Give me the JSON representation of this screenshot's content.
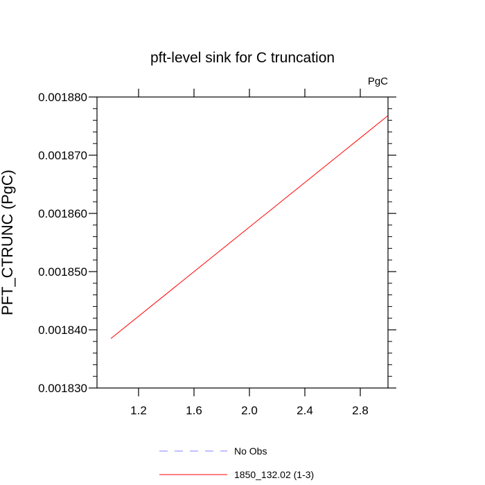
{
  "chart_data": {
    "type": "line",
    "title": "pft-level sink for C truncation",
    "units_label": "PgC",
    "ylabel": "PFT_CTRUNC  (PgC)",
    "xlabel": "",
    "xlim": [
      0.9,
      3.0
    ],
    "ylim": [
      0.00183,
      0.00188
    ],
    "x_ticks": [
      1.2,
      1.6,
      2.0,
      2.4,
      2.8
    ],
    "x_tick_labels": [
      "1.2",
      "1.6",
      "2.0",
      "2.4",
      "2.8"
    ],
    "y_ticks": [
      0.00183,
      0.00184,
      0.00185,
      0.00186,
      0.00187,
      0.00188
    ],
    "y_tick_labels": [
      "0.001830",
      "0.001840",
      "0.001850",
      "0.001860",
      "0.001870",
      "0.001880"
    ],
    "grid": false,
    "series": [
      {
        "name": "1850_132.02 (1-3)",
        "color": "#ff0000",
        "style": "solid",
        "x": [
          1.0,
          3.0
        ],
        "y": [
          0.0018385,
          0.0018768
        ]
      }
    ],
    "legend": {
      "placement": "bottom-center",
      "entries": [
        {
          "label": "No Obs",
          "color": "#8080ff",
          "style": "dashed"
        },
        {
          "label": "1850_132.02 (1-3)",
          "color": "#ff0000",
          "style": "solid"
        }
      ]
    }
  }
}
